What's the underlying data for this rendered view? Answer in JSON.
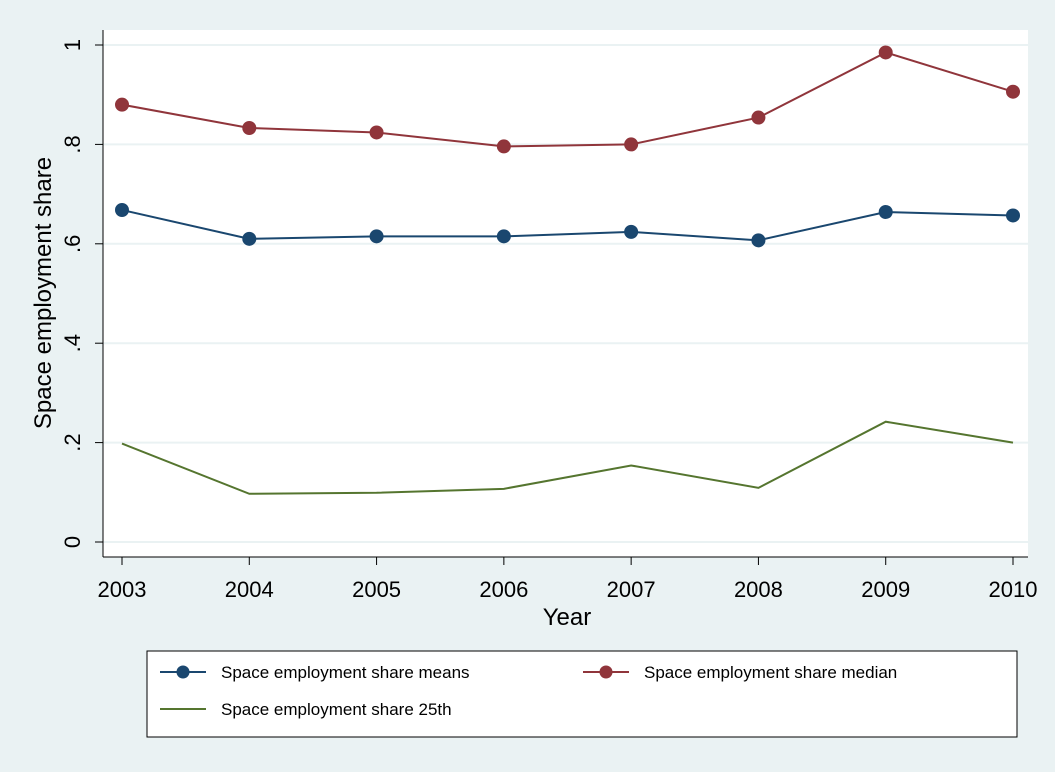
{
  "chart_data": {
    "type": "line",
    "xlabel": "Year",
    "ylabel": "Space employment share",
    "x": [
      2003,
      2004,
      2005,
      2006,
      2007,
      2008,
      2009,
      2010
    ],
    "xticks": [
      "2003",
      "2004",
      "2005",
      "2006",
      "2007",
      "2008",
      "2009",
      "2010"
    ],
    "yticks": [
      {
        "value": 0,
        "label": "0"
      },
      {
        "value": 0.2,
        "label": ".2"
      },
      {
        "value": 0.4,
        "label": ".4"
      },
      {
        "value": 0.6,
        "label": ".6"
      },
      {
        "value": 0.8,
        "label": ".8"
      },
      {
        "value": 1,
        "label": "1"
      }
    ],
    "ylim": [
      0,
      1
    ],
    "grid": true,
    "legend_position": "bottom",
    "series": [
      {
        "name": "Space employment share means",
        "color": "#1a476f",
        "markers": true,
        "values": [
          0.668,
          0.61,
          0.615,
          0.615,
          0.624,
          0.607,
          0.664,
          0.657
        ]
      },
      {
        "name": "Space employment share median",
        "color": "#90353b",
        "markers": true,
        "values": [
          0.88,
          0.833,
          0.824,
          0.796,
          0.8,
          0.854,
          0.985,
          0.906
        ]
      },
      {
        "name": "Space employment share 25th",
        "color": "#55752f",
        "markers": false,
        "values": [
          0.198,
          0.097,
          0.099,
          0.107,
          0.154,
          0.109,
          0.242,
          0.2
        ]
      }
    ]
  }
}
